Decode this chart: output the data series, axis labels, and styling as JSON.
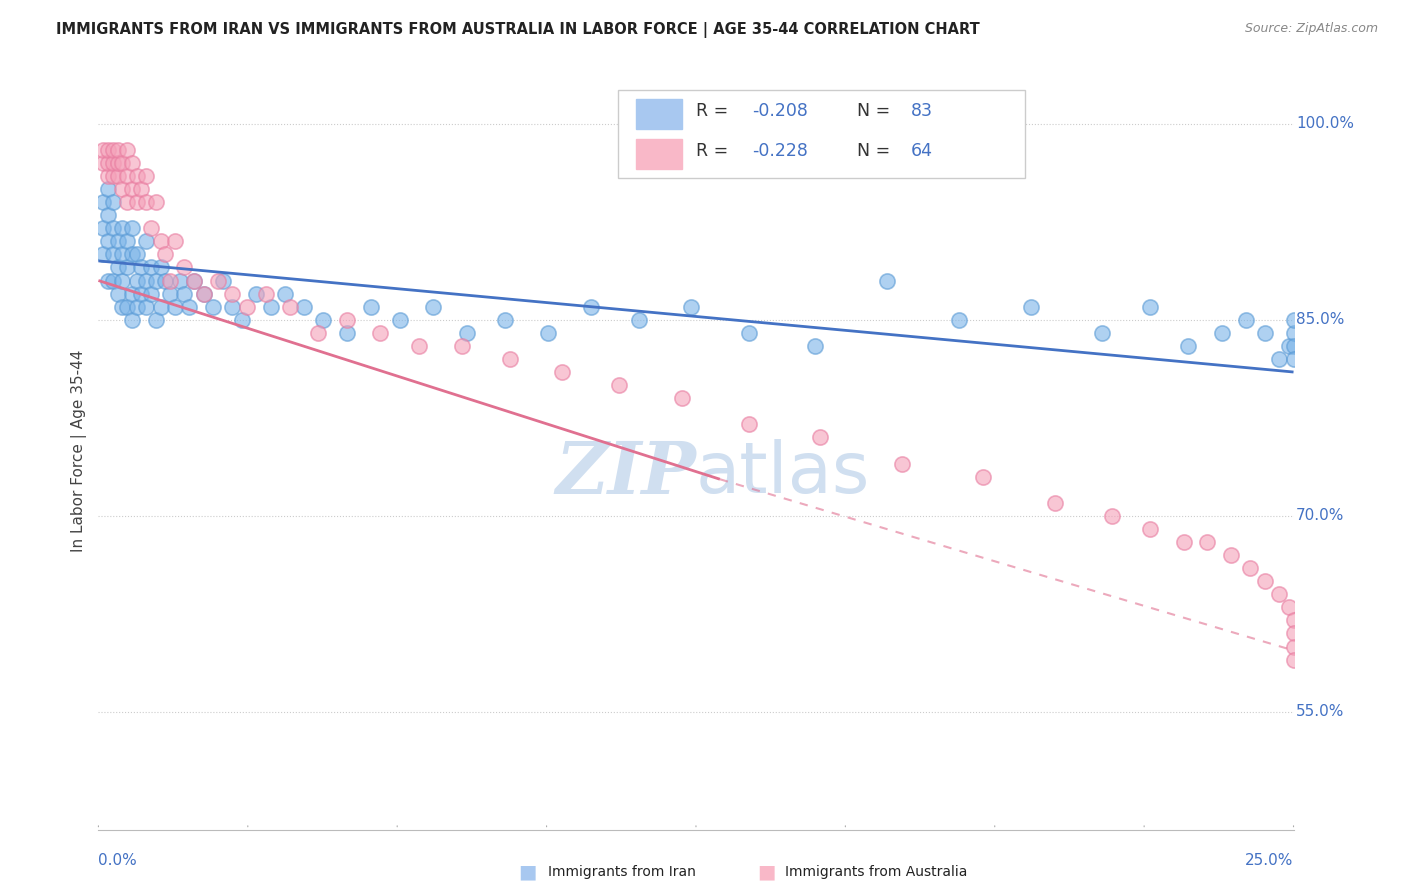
{
  "title": "IMMIGRANTS FROM IRAN VS IMMIGRANTS FROM AUSTRALIA IN LABOR FORCE | AGE 35-44 CORRELATION CHART",
  "source": "Source: ZipAtlas.com",
  "ylabel": "In Labor Force | Age 35-44",
  "ytick_labels": [
    "55.0%",
    "70.0%",
    "85.0%",
    "100.0%"
  ],
  "ytick_values": [
    0.55,
    0.7,
    0.85,
    1.0
  ],
  "xlim": [
    0.0,
    0.25
  ],
  "ylim": [
    0.46,
    1.04
  ],
  "iran_color": "#7ab3e8",
  "australia_color": "#f4a0b8",
  "iran_edge_color": "#5b9bd5",
  "australia_edge_color": "#e87ca0",
  "trend_iran_color": "#4472c4",
  "trend_aus_color": "#e07090",
  "axis_color": "#4472c4",
  "grid_color": "#cccccc",
  "watermark_color": "#d0dff0",
  "iran_scatter_x": [
    0.001,
    0.001,
    0.001,
    0.002,
    0.002,
    0.002,
    0.002,
    0.003,
    0.003,
    0.003,
    0.003,
    0.004,
    0.004,
    0.004,
    0.005,
    0.005,
    0.005,
    0.005,
    0.006,
    0.006,
    0.006,
    0.007,
    0.007,
    0.007,
    0.007,
    0.008,
    0.008,
    0.008,
    0.009,
    0.009,
    0.01,
    0.01,
    0.01,
    0.011,
    0.011,
    0.012,
    0.012,
    0.013,
    0.013,
    0.014,
    0.015,
    0.016,
    0.017,
    0.018,
    0.019,
    0.02,
    0.022,
    0.024,
    0.026,
    0.028,
    0.03,
    0.033,
    0.036,
    0.039,
    0.043,
    0.047,
    0.052,
    0.057,
    0.063,
    0.07,
    0.077,
    0.085,
    0.094,
    0.103,
    0.113,
    0.124,
    0.136,
    0.15,
    0.165,
    0.18,
    0.195,
    0.21,
    0.22,
    0.228,
    0.235,
    0.24,
    0.244,
    0.247,
    0.249,
    0.25,
    0.25,
    0.25,
    0.25
  ],
  "iran_scatter_y": [
    0.9,
    0.92,
    0.94,
    0.88,
    0.91,
    0.93,
    0.95,
    0.88,
    0.9,
    0.92,
    0.94,
    0.87,
    0.89,
    0.91,
    0.86,
    0.88,
    0.9,
    0.92,
    0.86,
    0.89,
    0.91,
    0.85,
    0.87,
    0.9,
    0.92,
    0.86,
    0.88,
    0.9,
    0.87,
    0.89,
    0.86,
    0.88,
    0.91,
    0.87,
    0.89,
    0.85,
    0.88,
    0.86,
    0.89,
    0.88,
    0.87,
    0.86,
    0.88,
    0.87,
    0.86,
    0.88,
    0.87,
    0.86,
    0.88,
    0.86,
    0.85,
    0.87,
    0.86,
    0.87,
    0.86,
    0.85,
    0.84,
    0.86,
    0.85,
    0.86,
    0.84,
    0.85,
    0.84,
    0.86,
    0.85,
    0.86,
    0.84,
    0.83,
    0.88,
    0.85,
    0.86,
    0.84,
    0.86,
    0.83,
    0.84,
    0.85,
    0.84,
    0.82,
    0.83,
    0.84,
    0.85,
    0.83,
    0.82
  ],
  "australia_scatter_x": [
    0.001,
    0.001,
    0.002,
    0.002,
    0.002,
    0.003,
    0.003,
    0.003,
    0.004,
    0.004,
    0.004,
    0.005,
    0.005,
    0.006,
    0.006,
    0.006,
    0.007,
    0.007,
    0.008,
    0.008,
    0.009,
    0.01,
    0.01,
    0.011,
    0.012,
    0.013,
    0.014,
    0.015,
    0.016,
    0.018,
    0.02,
    0.022,
    0.025,
    0.028,
    0.031,
    0.035,
    0.04,
    0.046,
    0.052,
    0.059,
    0.067,
    0.076,
    0.086,
    0.097,
    0.109,
    0.122,
    0.136,
    0.151,
    0.168,
    0.185,
    0.2,
    0.212,
    0.22,
    0.227,
    0.232,
    0.237,
    0.241,
    0.244,
    0.247,
    0.249,
    0.25,
    0.25,
    0.25,
    0.25
  ],
  "australia_scatter_y": [
    0.97,
    0.98,
    0.96,
    0.97,
    0.98,
    0.96,
    0.97,
    0.98,
    0.96,
    0.97,
    0.98,
    0.95,
    0.97,
    0.94,
    0.96,
    0.98,
    0.95,
    0.97,
    0.94,
    0.96,
    0.95,
    0.94,
    0.96,
    0.92,
    0.94,
    0.91,
    0.9,
    0.88,
    0.91,
    0.89,
    0.88,
    0.87,
    0.88,
    0.87,
    0.86,
    0.87,
    0.86,
    0.84,
    0.85,
    0.84,
    0.83,
    0.83,
    0.82,
    0.81,
    0.8,
    0.79,
    0.77,
    0.76,
    0.74,
    0.73,
    0.71,
    0.7,
    0.69,
    0.68,
    0.68,
    0.67,
    0.66,
    0.65,
    0.64,
    0.63,
    0.62,
    0.61,
    0.6,
    0.59
  ],
  "iran_trend_x0": 0.0,
  "iran_trend_y0": 0.895,
  "iran_trend_x1": 0.25,
  "iran_trend_y1": 0.81,
  "aus_trend_x0": 0.0,
  "aus_trend_y0": 0.88,
  "aus_trend_x1": 0.13,
  "aus_trend_y1": 0.728,
  "aus_trend_dash_x0": 0.13,
  "aus_trend_dash_y0": 0.728,
  "aus_trend_dash_x1": 0.25,
  "aus_trend_dash_y1": 0.597
}
